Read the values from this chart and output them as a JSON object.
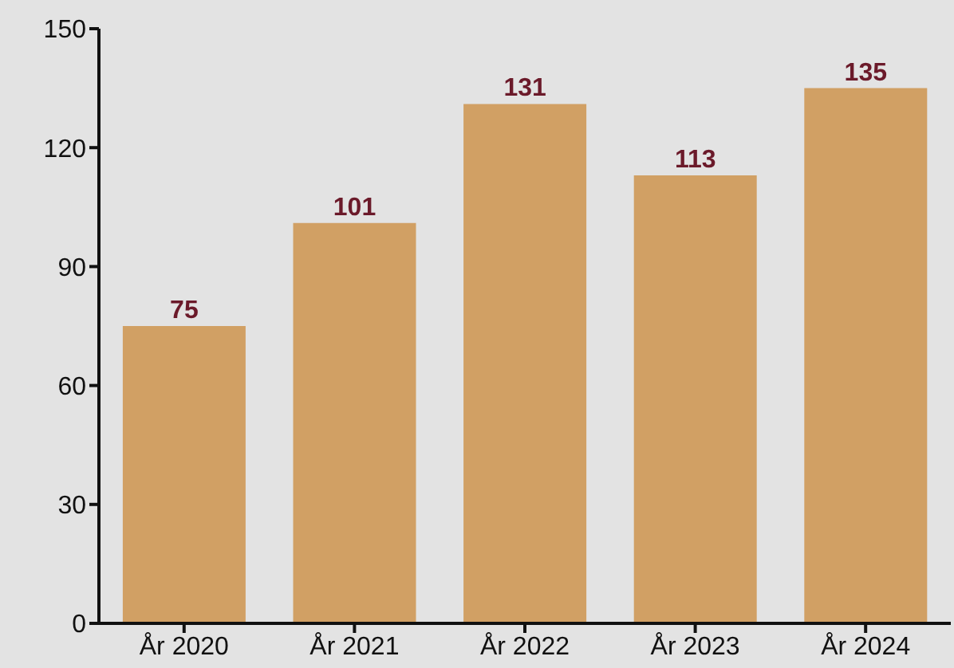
{
  "chart_data": {
    "type": "bar",
    "categories": [
      "År 2020",
      "År 2021",
      "År 2022",
      "År 2023",
      "År 2024"
    ],
    "values": [
      75,
      101,
      131,
      113,
      135
    ],
    "color": "#d1a064",
    "ylim": [
      0,
      150
    ],
    "yticks": [
      0,
      30,
      60,
      90,
      120,
      150
    ],
    "data_labels": true
  }
}
